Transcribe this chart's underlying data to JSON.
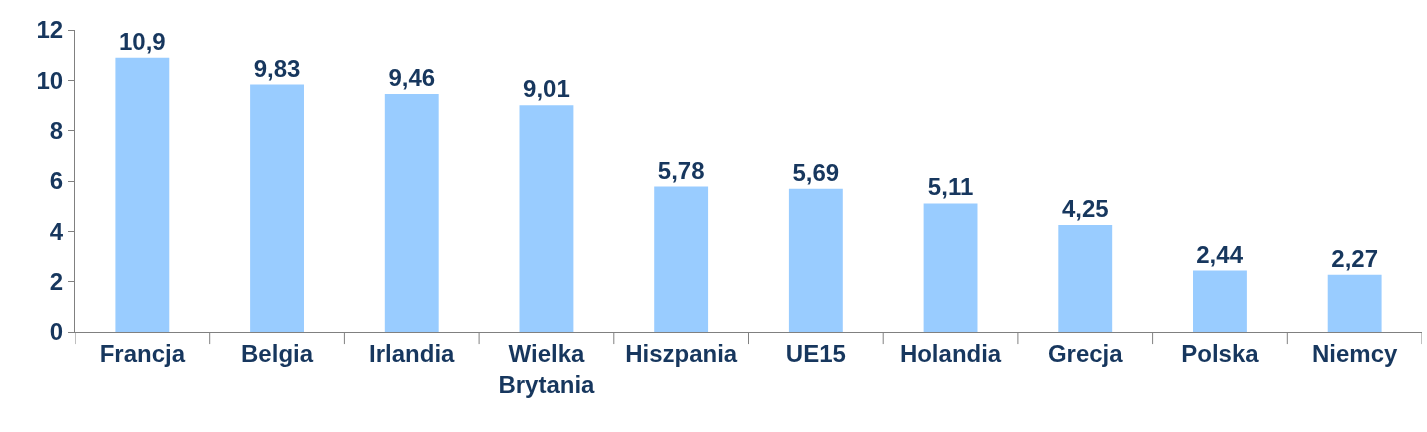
{
  "chart_data": {
    "type": "bar",
    "categories": [
      "Francja",
      "Belgia",
      "Irlandia",
      "Wielka Brytania",
      "Hiszpania",
      "UE15",
      "Holandia",
      "Grecja",
      "Polska",
      "Niemcy"
    ],
    "values": [
      10.9,
      9.83,
      9.46,
      9.01,
      5.78,
      5.69,
      5.11,
      4.25,
      2.44,
      2.27
    ],
    "value_labels": [
      "10,9",
      "9,83",
      "9,46",
      "9,01",
      "5,78",
      "5,69",
      "5,11",
      "4,25",
      "2,44",
      "2,27"
    ],
    "color": "#99ccff",
    "ylim": [
      0,
      12
    ],
    "yticks": [
      0,
      2,
      4,
      6,
      8,
      10,
      12
    ]
  }
}
